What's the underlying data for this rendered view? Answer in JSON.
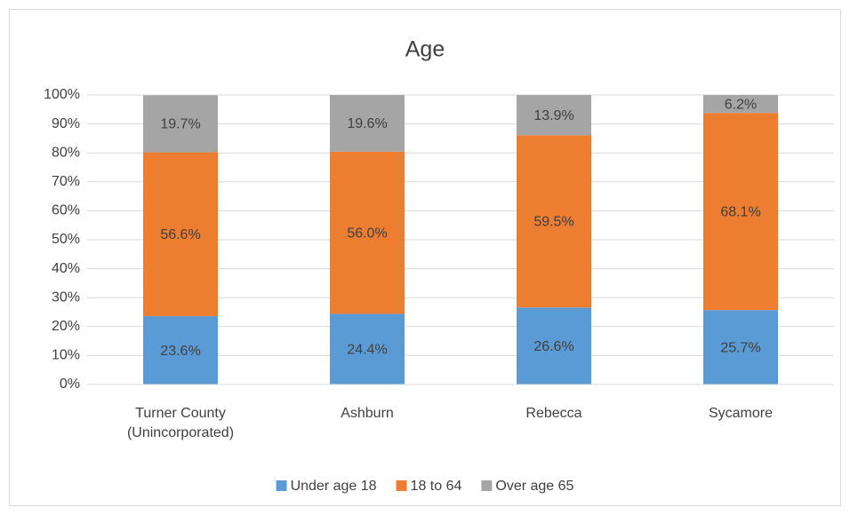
{
  "chart_data": {
    "type": "stacked_bar",
    "title": "Age",
    "categories": [
      "Turner County (Unincorporated)",
      "Ashburn",
      "Rebecca",
      "Sycamore"
    ],
    "series": [
      {
        "name": "Under age 18",
        "color": "#5b9bd5",
        "values": [
          23.6,
          24.4,
          26.6,
          25.7
        ],
        "value_labels": [
          "23.6%",
          "24.4%",
          "26.6%",
          "25.7%"
        ]
      },
      {
        "name": "18 to 64",
        "color": "#ed7d31",
        "values": [
          56.6,
          56.0,
          59.5,
          68.1
        ],
        "value_labels": [
          "56.6%",
          "56.0%",
          "59.5%",
          "68.1%"
        ]
      },
      {
        "name": "Over age 65",
        "color": "#a5a5a5",
        "values": [
          19.7,
          19.6,
          13.9,
          6.2
        ],
        "value_labels": [
          "19.7%",
          "19.6%",
          "13.9%",
          "6.2%"
        ]
      }
    ],
    "ylim": [
      0,
      100
    ],
    "yticks": [
      {
        "value": 0,
        "label": "0%"
      },
      {
        "value": 10,
        "label": "10%"
      },
      {
        "value": 20,
        "label": "20%"
      },
      {
        "value": 30,
        "label": "30%"
      },
      {
        "value": 40,
        "label": "40%"
      },
      {
        "value": 50,
        "label": "50%"
      },
      {
        "value": 60,
        "label": "60%"
      },
      {
        "value": 70,
        "label": "70%"
      },
      {
        "value": 80,
        "label": "80%"
      },
      {
        "value": 90,
        "label": "90%"
      },
      {
        "value": 100,
        "label": "100%"
      }
    ],
    "grid": true,
    "legend": "bottom"
  }
}
